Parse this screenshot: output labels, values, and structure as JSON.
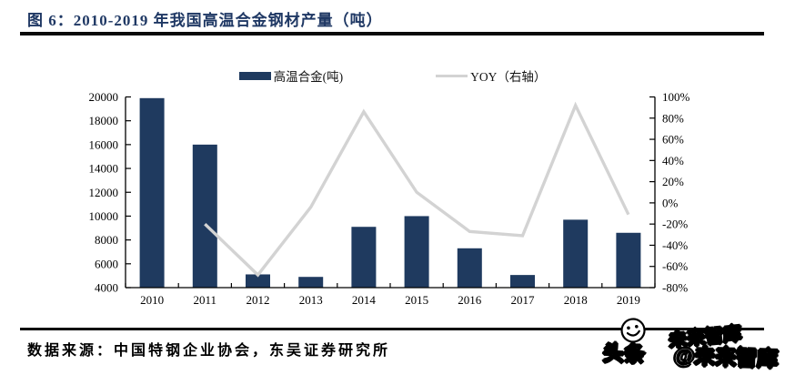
{
  "header": {
    "title": "图 6：2010-2019 年我国高温合金钢材产量（吨）"
  },
  "legend": [
    {
      "label": "高温合金(吨)",
      "type": "bar",
      "color": "#1f3a5f"
    },
    {
      "label": "YOY（右轴）",
      "type": "line",
      "color": "#d3d3d3"
    }
  ],
  "chart_data": {
    "type": "bar+line",
    "title": "2010-2019 年我国高温合金钢材产量（吨）",
    "categories": [
      "2010",
      "2011",
      "2012",
      "2013",
      "2014",
      "2015",
      "2016",
      "2017",
      "2018",
      "2019"
    ],
    "series": [
      {
        "name": "高温合金(吨)",
        "type": "bar",
        "axis": "left",
        "color": "#1f3a5f",
        "values": [
          19900,
          16000,
          5110,
          4900,
          9100,
          10000,
          7300,
          5060,
          9700,
          8600
        ]
      },
      {
        "name": "YOY（右轴）",
        "type": "line",
        "axis": "right",
        "color": "#d3d3d3",
        "values": [
          null,
          -20,
          -68,
          -4,
          86,
          10,
          -27,
          -31,
          92,
          -11
        ]
      }
    ],
    "left_axis": {
      "min": 4000,
      "max": 20000,
      "step": 2000,
      "suffix": ""
    },
    "right_axis": {
      "min": -80,
      "max": 100,
      "step": 20,
      "suffix": "%"
    },
    "grid": false,
    "legend_position": "top",
    "axis_color": "#000000",
    "tick_label_color": "#000000"
  },
  "footer": {
    "source": "数据来源：中国特钢企业协会，东吴证券研究所"
  },
  "watermark": {
    "text_ghost": "未来智库",
    "text_main_left": "头条",
    "text_main_right": "@未来智库",
    "icon": "smiley"
  }
}
